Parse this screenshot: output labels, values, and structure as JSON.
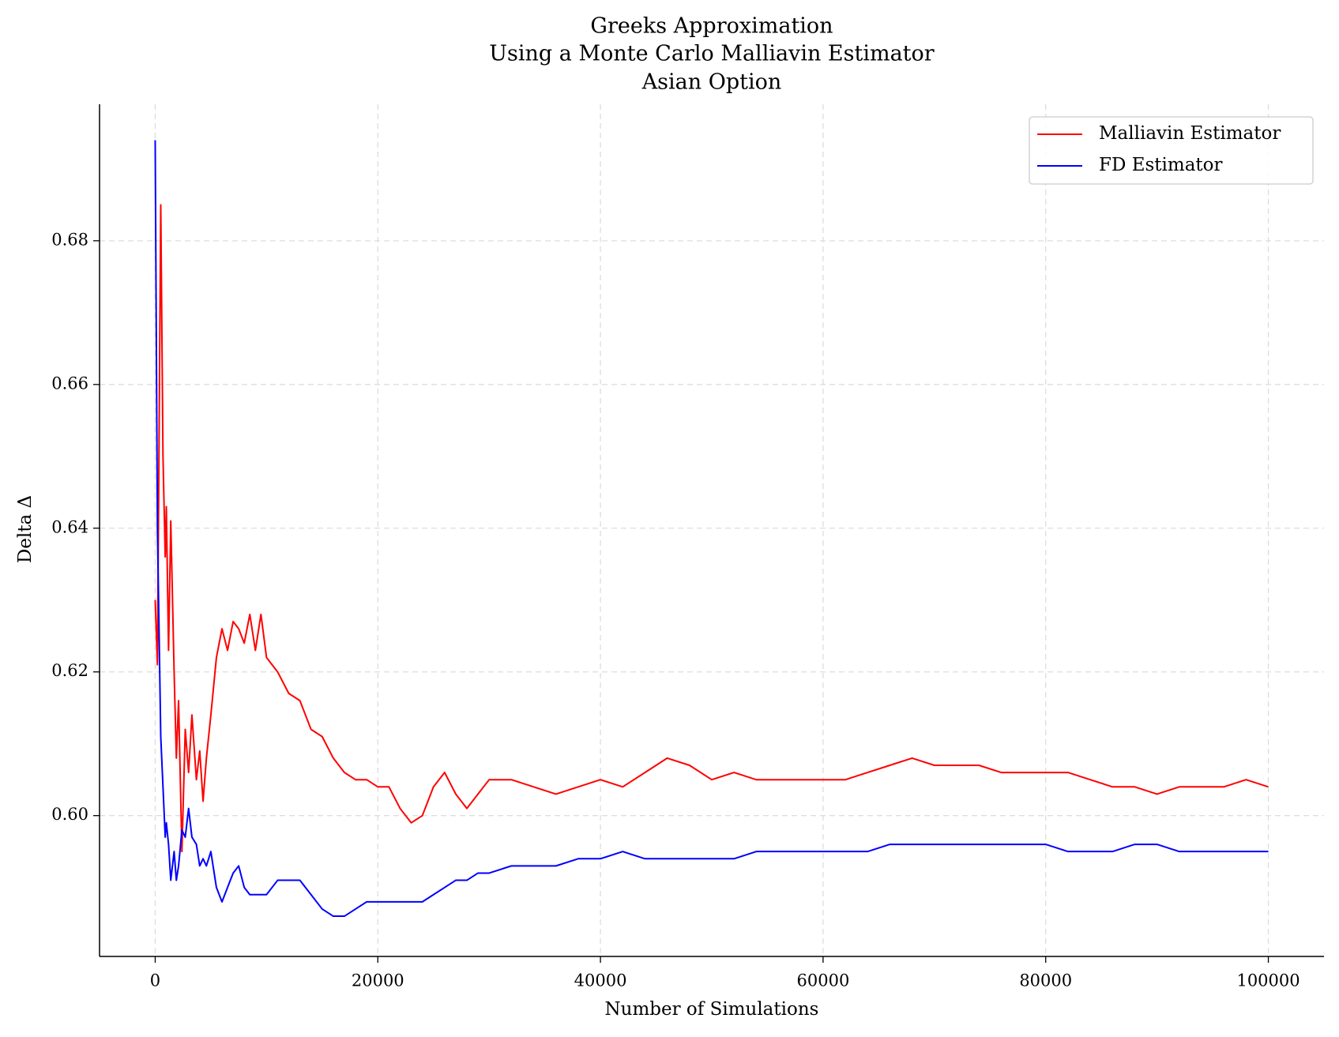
{
  "chart_data": {
    "type": "line",
    "title": [
      "Greeks Approximation",
      "Using a Monte Carlo Malliavin Estimator",
      "Asian Option"
    ],
    "xlabel": "Number of Simulations",
    "ylabel": "Delta Δ",
    "x": [
      0,
      200,
      500,
      700,
      900,
      1000,
      1200,
      1400,
      1700,
      1900,
      2100,
      2400,
      2700,
      3000,
      3300,
      3700,
      4000,
      4300,
      4600,
      5000,
      5500,
      6000,
      6500,
      7000,
      7500,
      8000,
      8500,
      9000,
      9500,
      10000,
      11000,
      12000,
      13000,
      14000,
      15000,
      16000,
      17000,
      18000,
      19000,
      20000,
      21000,
      22000,
      23000,
      24000,
      25000,
      26000,
      27000,
      28000,
      29000,
      30000,
      32000,
      34000,
      36000,
      38000,
      40000,
      42000,
      44000,
      46000,
      48000,
      50000,
      52000,
      54000,
      56000,
      58000,
      60000,
      62000,
      64000,
      66000,
      68000,
      70000,
      72000,
      74000,
      76000,
      78000,
      80000,
      82000,
      84000,
      86000,
      88000,
      90000,
      92000,
      94000,
      96000,
      98000,
      100000
    ],
    "series": [
      {
        "name": "Malliavin Estimator",
        "color": "#ff0000",
        "values": [
          0.63,
          0.621,
          0.685,
          0.65,
          0.636,
          0.643,
          0.623,
          0.641,
          0.62,
          0.608,
          0.616,
          0.595,
          0.612,
          0.606,
          0.614,
          0.605,
          0.609,
          0.602,
          0.608,
          0.614,
          0.622,
          0.626,
          0.623,
          0.627,
          0.626,
          0.624,
          0.628,
          0.623,
          0.628,
          0.622,
          0.62,
          0.617,
          0.616,
          0.612,
          0.611,
          0.608,
          0.606,
          0.605,
          0.605,
          0.604,
          0.604,
          0.601,
          0.599,
          0.6,
          0.604,
          0.606,
          0.603,
          0.601,
          0.603,
          0.605,
          0.605,
          0.604,
          0.603,
          0.604,
          0.605,
          0.604,
          0.606,
          0.608,
          0.607,
          0.605,
          0.606,
          0.605,
          0.605,
          0.605,
          0.605,
          0.605,
          0.606,
          0.607,
          0.608,
          0.607,
          0.607,
          0.607,
          0.606,
          0.606,
          0.606,
          0.606,
          0.605,
          0.604,
          0.604,
          0.603,
          0.604,
          0.604,
          0.604,
          0.605,
          0.604
        ]
      },
      {
        "name": "FD Estimator",
        "color": "#0000ff",
        "values": [
          0.694,
          0.64,
          0.611,
          0.604,
          0.597,
          0.599,
          0.596,
          0.591,
          0.595,
          0.591,
          0.593,
          0.598,
          0.597,
          0.601,
          0.597,
          0.596,
          0.593,
          0.594,
          0.593,
          0.595,
          0.59,
          0.588,
          0.59,
          0.592,
          0.593,
          0.59,
          0.589,
          0.589,
          0.589,
          0.589,
          0.591,
          0.591,
          0.591,
          0.589,
          0.587,
          0.586,
          0.586,
          0.587,
          0.588,
          0.588,
          0.588,
          0.588,
          0.588,
          0.588,
          0.589,
          0.59,
          0.591,
          0.591,
          0.592,
          0.592,
          0.593,
          0.593,
          0.593,
          0.594,
          0.594,
          0.595,
          0.594,
          0.594,
          0.594,
          0.594,
          0.594,
          0.595,
          0.595,
          0.595,
          0.595,
          0.595,
          0.595,
          0.596,
          0.596,
          0.596,
          0.596,
          0.596,
          0.596,
          0.596,
          0.596,
          0.595,
          0.595,
          0.595,
          0.596,
          0.596,
          0.595,
          0.595,
          0.595,
          0.595,
          0.595
        ]
      }
    ],
    "xlim": [
      -5000,
      105000
    ],
    "ylim": [
      0.5804,
      0.699
    ],
    "xticks": [
      0,
      20000,
      40000,
      60000,
      80000,
      100000
    ],
    "yticks": [
      {
        "value": 0.6,
        "label": "0.60"
      },
      0.62,
      0.64,
      0.66,
      0.68
    ],
    "grid": true,
    "legend": "upper right"
  }
}
